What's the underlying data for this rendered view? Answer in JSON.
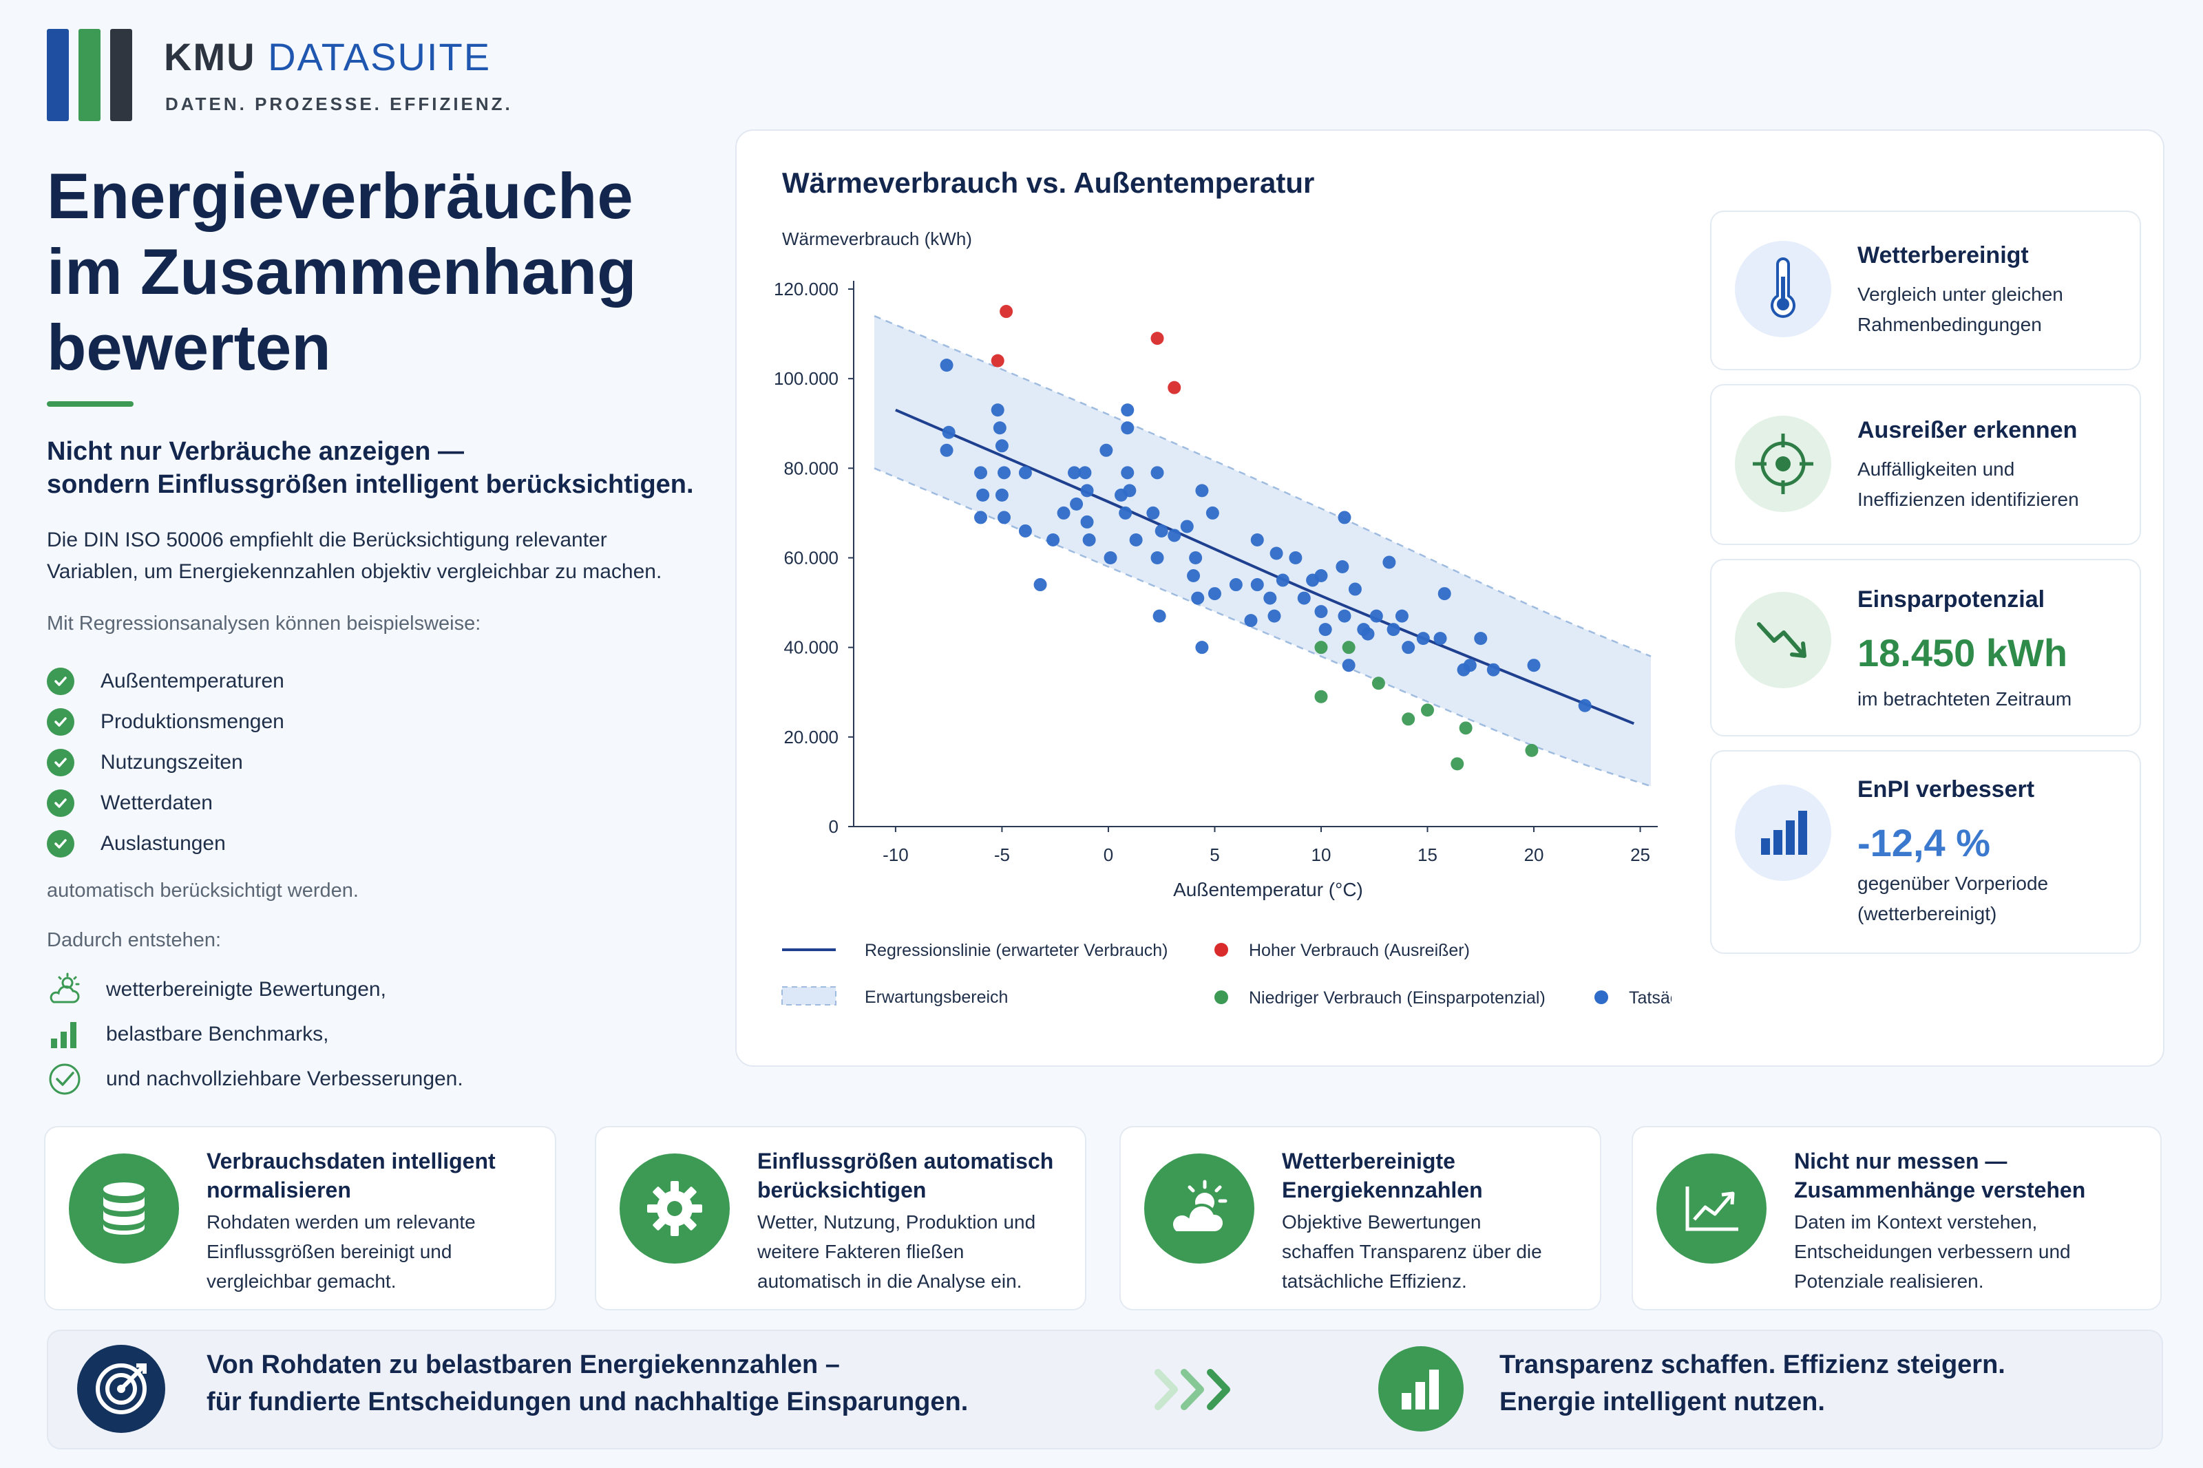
{
  "brand": {
    "name_a": "KMU",
    "name_b": "DATASUITE",
    "tagline": "DATEN. PROZESSE. EFFIZIENZ."
  },
  "colors": {
    "navy": "#13264d",
    "blue": "#2f6bc8",
    "green": "#3c9a55",
    "red": "#d92b2b",
    "band": "#dce8f7"
  },
  "left": {
    "title_line1": "Energieverbräuche",
    "title_line2": "im Zusammenhang",
    "title_line3": "bewerten",
    "subtitle_line1": "Nicht nur Verbräuche anzeigen —",
    "subtitle_line2": "sondern Einflussgrößen intelligent berücksichtigen.",
    "intro_line1": "Die DIN ISO 50006 empfiehlt die Berücksichtigung relevanter",
    "intro_line2": "Variablen, um Energiekennzahlen objektiv vergleichbar zu machen.",
    "regression_intro": "Mit Regressionsanalysen können beispielsweise:",
    "checklist": [
      "Außentemperaturen",
      "Produktionsmengen",
      "Nutzungszeiten",
      "Wetterdaten",
      "Auslastungen"
    ],
    "auto_text": "automatisch berücksichtigt werden.",
    "result_intro": "Dadurch entstehen:",
    "results": [
      {
        "icon": "cloud-sun-icon",
        "label": "wetterbereinigte Bewertungen,"
      },
      {
        "icon": "bar-chart-icon",
        "label": "belastbare Benchmarks,"
      },
      {
        "icon": "check-circle-icon",
        "label": "und nachvollziehbare Verbesserungen."
      }
    ]
  },
  "chart_data": {
    "type": "scatter",
    "title": "Wärmeverbrauch vs. Außentemperatur",
    "ylabel": "Wärmeverbrauch (kWh)",
    "xlabel": "Außentemperatur (°C)",
    "xlim": [
      -11,
      25.5
    ],
    "ylim": [
      0,
      120000
    ],
    "x_ticks": [
      "-10",
      "-5",
      "0",
      "5",
      "10",
      "15",
      "20",
      "25"
    ],
    "y_ticks": [
      "0",
      "20.000",
      "40.000",
      "60.000",
      "80.000",
      "100.000",
      "120.000"
    ],
    "grid": false,
    "legend_position": "bottom",
    "legend": {
      "regression": "Regressionslinie (erwarteter Verbrauch)",
      "band": "Erwartungsbereich",
      "high": "Hoher Verbrauch (Ausreißer)",
      "low": "Niedriger Verbrauch (Einsparpotenzial)",
      "actual": "Tatsächlicher Verbrauch"
    },
    "regression": [
      [
        -10,
        93000
      ],
      [
        0,
        72500
      ],
      [
        10,
        51500
      ],
      [
        20,
        32000
      ],
      [
        24.7,
        23000
      ]
    ],
    "band": {
      "upper": [
        [
          -11,
          114000
        ],
        [
          0,
          92000
        ],
        [
          10,
          71000
        ],
        [
          20,
          49000
        ],
        [
          25.5,
          38000
        ]
      ],
      "lower": [
        [
          -11,
          80000
        ],
        [
          0,
          58000
        ],
        [
          10,
          38000
        ],
        [
          20,
          18000
        ],
        [
          25.5,
          9000
        ]
      ]
    },
    "series": [
      {
        "name": "Tatsächlicher Verbrauch",
        "points": [
          [
            -7.6,
            103000
          ],
          [
            -7.5,
            88000
          ],
          [
            -7.6,
            84000
          ],
          [
            -6,
            79000
          ],
          [
            -5.9,
            74000
          ],
          [
            -6,
            69000
          ],
          [
            -5.2,
            93000
          ],
          [
            -5.1,
            89000
          ],
          [
            -5,
            85000
          ],
          [
            -4.9,
            79000
          ],
          [
            -5,
            74000
          ],
          [
            -4.9,
            69000
          ],
          [
            -3.9,
            79000
          ],
          [
            -3.9,
            66000
          ],
          [
            -3.2,
            54000
          ],
          [
            -2.6,
            64000
          ],
          [
            -2.1,
            70000
          ],
          [
            -1.6,
            79000
          ],
          [
            -1.5,
            72000
          ],
          [
            -1.1,
            79000
          ],
          [
            -1,
            75000
          ],
          [
            -1,
            68000
          ],
          [
            -0.9,
            64000
          ],
          [
            -0.1,
            84000
          ],
          [
            0.1,
            60000
          ],
          [
            0.6,
            74000
          ],
          [
            0.8,
            70000
          ],
          [
            0.9,
            89000
          ],
          [
            0.9,
            93000
          ],
          [
            0.9,
            79000
          ],
          [
            1,
            75000
          ],
          [
            1.3,
            64000
          ],
          [
            2.1,
            70000
          ],
          [
            2.3,
            79000
          ],
          [
            2.4,
            47000
          ],
          [
            2.3,
            60000
          ],
          [
            2.5,
            66000
          ],
          [
            3.1,
            65000
          ],
          [
            3.7,
            67000
          ],
          [
            4,
            56000
          ],
          [
            4.1,
            60000
          ],
          [
            4.2,
            51000
          ],
          [
            4.4,
            40000
          ],
          [
            4.4,
            75000
          ],
          [
            4.9,
            70000
          ],
          [
            5,
            52000
          ],
          [
            6,
            54000
          ],
          [
            6.7,
            46000
          ],
          [
            7,
            54000
          ],
          [
            7,
            64000
          ],
          [
            7.6,
            51000
          ],
          [
            7.8,
            47000
          ],
          [
            7.9,
            61000
          ],
          [
            8.2,
            55000
          ],
          [
            8.8,
            60000
          ],
          [
            9.2,
            51000
          ],
          [
            9.6,
            55000
          ],
          [
            10,
            56000
          ],
          [
            10,
            48000
          ],
          [
            10.2,
            44000
          ],
          [
            11,
            58000
          ],
          [
            11.1,
            69000
          ],
          [
            11.1,
            47000
          ],
          [
            11.3,
            36000
          ],
          [
            11.6,
            53000
          ],
          [
            12,
            44000
          ],
          [
            12.2,
            43000
          ],
          [
            12.6,
            47000
          ],
          [
            13.2,
            59000
          ],
          [
            13.4,
            44000
          ],
          [
            13.8,
            47000
          ],
          [
            14.1,
            40000
          ],
          [
            14.8,
            42000
          ],
          [
            15.6,
            42000
          ],
          [
            15.8,
            52000
          ],
          [
            16.7,
            35000
          ],
          [
            17,
            36000
          ],
          [
            17.5,
            42000
          ],
          [
            18.1,
            35000
          ],
          [
            20,
            36000
          ],
          [
            22.4,
            27000
          ]
        ]
      },
      {
        "name": "Hoher Verbrauch (Ausreißer)",
        "points": [
          [
            -4.8,
            115000
          ],
          [
            -5.2,
            104000
          ],
          [
            2.3,
            109000
          ],
          [
            3.1,
            98000
          ]
        ]
      },
      {
        "name": "Niedriger Verbrauch (Einsparpotenzial)",
        "points": [
          [
            10,
            40000
          ],
          [
            10,
            29000
          ],
          [
            11.3,
            40000
          ],
          [
            12.7,
            32000
          ],
          [
            14.1,
            24000
          ],
          [
            15,
            26000
          ],
          [
            16.8,
            22000
          ],
          [
            16.4,
            14000
          ],
          [
            19.9,
            17000
          ]
        ]
      }
    ]
  },
  "kpis": [
    {
      "icon": "thermometer-icon",
      "title": "Wetterbereinigt",
      "line1": "Vergleich unter gleichen",
      "line2": "Rahmenbedingungen"
    },
    {
      "icon": "target-icon",
      "title": "Ausreißer erkennen",
      "line1": "Auffälligkeiten und",
      "line2": "Ineffizienzen identifizieren"
    },
    {
      "icon": "trend-down-icon",
      "title": "Einsparpotenzial",
      "value": "18.450 kWh",
      "line1": "im betrachteten Zeitraum"
    },
    {
      "icon": "bar-chart-icon",
      "title": "EnPI verbessert",
      "value": "-12,4 %",
      "line1": "gegenüber Vorperiode",
      "line2": "(wetterbereinigt)"
    }
  ],
  "features": [
    {
      "icon": "database-icon",
      "title": "Verbrauchsdaten intelligent normalisieren",
      "text": "Rohdaten werden um relevante Einflussgrößen bereinigt und vergleichbar gemacht."
    },
    {
      "icon": "gear-icon",
      "title": "Einflussgrößen automatisch berücksichtigen",
      "text": "Wetter, Nutzung, Produktion und weitere Fakteren fließen automatisch in die Analyse ein."
    },
    {
      "icon": "cloud-sun-icon",
      "title": "Wetterbereinigte Energiekennzahlen",
      "text": "Objektive Bewertungen schaffen Transparenz über die tatsächliche Effizienz."
    },
    {
      "icon": "line-chart-icon",
      "title": "Nicht nur messen — Zusammenhänge verstehen",
      "text": "Daten im Kontext verstehen, Entscheidungen verbessern und Potenziale realisieren."
    }
  ],
  "banner": {
    "left_line1": "Von Rohdaten zu belastbaren Energiekennzahlen –",
    "left_line2": "für fundierte Entscheidungen und nachhaltige Einsparungen.",
    "right_line1": "Transparenz schaffen. Effizienz steigern.",
    "right_line2": "Energie intelligent nutzen."
  }
}
